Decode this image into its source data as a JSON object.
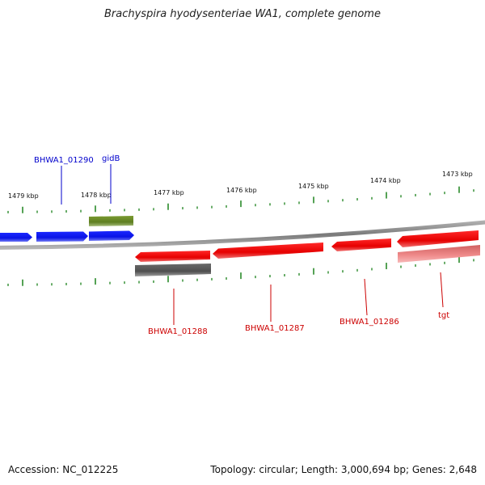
{
  "title": "Brachyspira hyodysenteriae WA1, complete genome",
  "footer": {
    "accession": "Accession: NC_012225",
    "summary": "Topology: circular; Length: 3,000,694 bp; Genes: 2,648"
  },
  "scale_labels": [
    "1479 kbp",
    "1478 kbp",
    "1477 kbp",
    "1476 kbp",
    "1475 kbp",
    "1474 kbp",
    "1473 kbp"
  ],
  "gene_labels": {
    "bhwa1_01290": "BHWA1_01290",
    "gidb": "gidB",
    "bhwa1_01288": "BHWA1_01288",
    "bhwa1_01287": "BHWA1_01287",
    "bhwa1_01286": "BHWA1_01286",
    "tgt": "tgt"
  },
  "colors": {
    "forward_cds": "#0a14e6",
    "reverse_cds": "#e60000",
    "gene_label_forward": "#0000cc",
    "gene_label_reverse": "#cc0000",
    "tick": "#2a8a2a",
    "backbone": "#888888",
    "forward_gene": "#6b8a2a",
    "reverse_gene_dark": "#606060",
    "reverse_gene_light": "#f08080"
  }
}
